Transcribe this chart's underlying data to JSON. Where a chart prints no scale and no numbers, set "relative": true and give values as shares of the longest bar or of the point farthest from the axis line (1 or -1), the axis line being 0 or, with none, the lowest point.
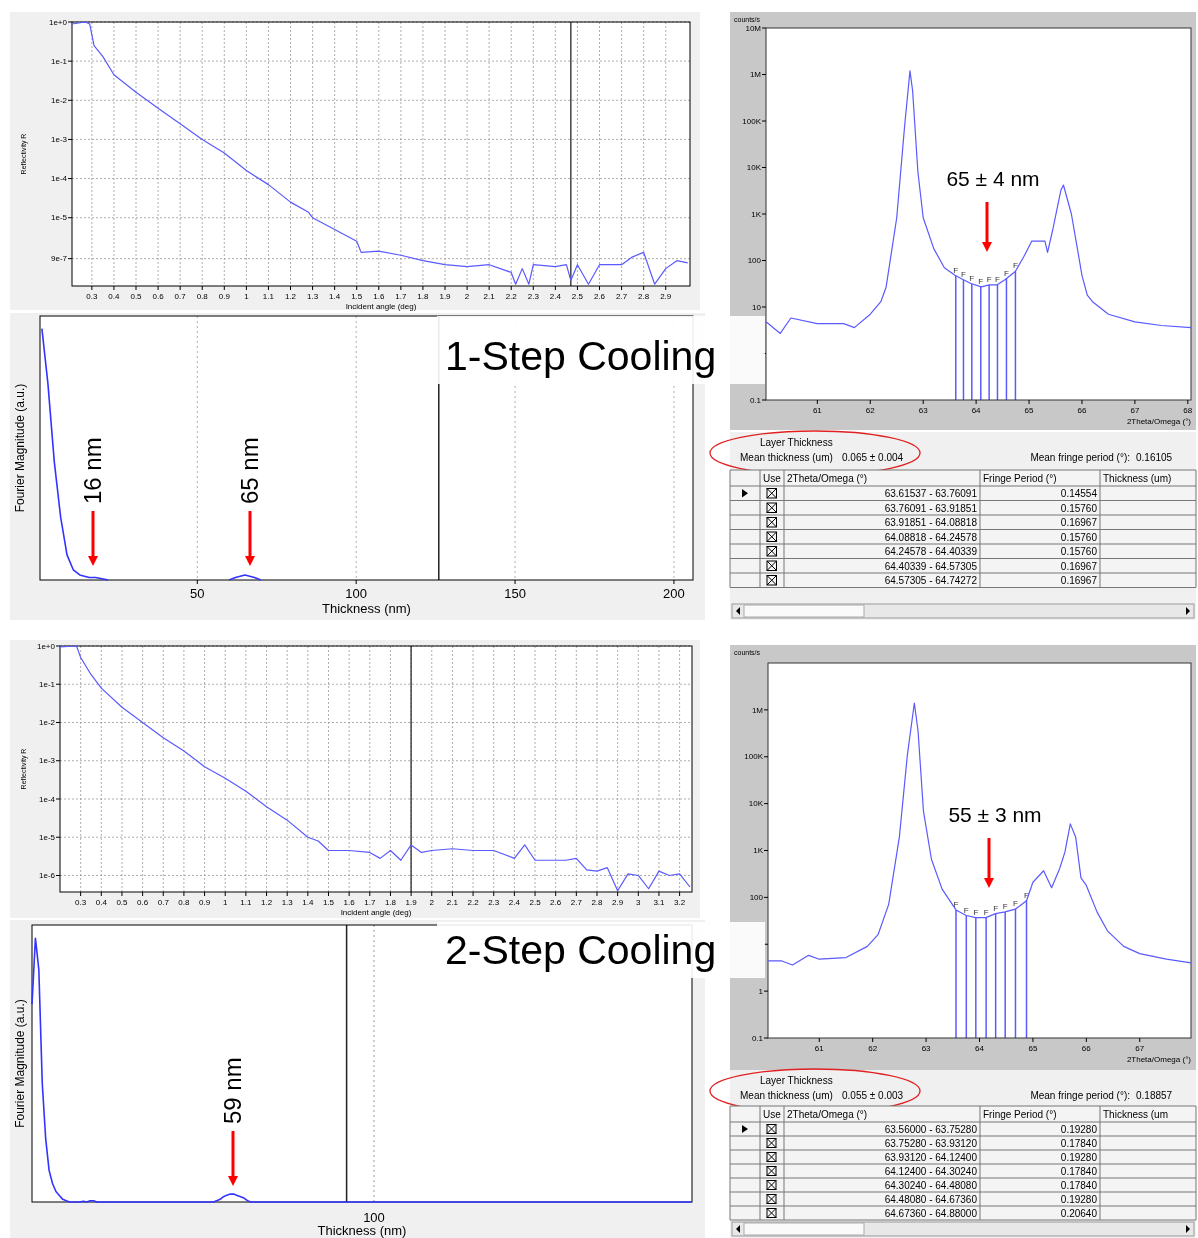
{
  "chart_data": [
    {
      "type": "line",
      "xlabel": "Incident angle (deg)",
      "ylabel": "Reflectivity R",
      "log": true,
      "grid": true,
      "xlim": [
        0.21,
        3.01
      ],
      "ylim": [
        1.8e-07,
        1
      ],
      "xticks": [
        0.3,
        0.4,
        0.5,
        0.6,
        0.7,
        0.8,
        0.9,
        1,
        1.1,
        1.2,
        1.3,
        1.4,
        1.5,
        1.6,
        1.7,
        1.8,
        1.9,
        2,
        2.1,
        2.2,
        2.3,
        2.4,
        2.5,
        2.6,
        2.7,
        2.8,
        2.9
      ],
      "yticks": [
        {
          "value": 1,
          "label": "1e+0"
        },
        {
          "value": 0.1,
          "label": "1e-1"
        },
        {
          "value": 0.01,
          "label": "1e-2"
        },
        {
          "value": 0.001,
          "label": "1e-3"
        },
        {
          "value": 0.0001,
          "label": "1e-4"
        },
        {
          "value": 1e-05,
          "label": "1e-5"
        },
        {
          "value": 9e-07,
          "label": "9e-7"
        }
      ],
      "x": [
        0.21,
        0.27,
        0.29,
        0.31,
        0.35,
        0.4,
        0.5,
        0.6,
        0.7,
        0.8,
        0.9,
        1.0,
        1.1,
        1.2,
        1.28,
        1.3,
        1.4,
        1.5,
        1.52,
        1.6,
        1.7,
        1.8,
        1.9,
        2.0,
        2.1,
        2.2,
        2.22,
        2.25,
        2.28,
        2.3,
        2.4,
        2.45,
        2.47,
        2.5,
        2.55,
        2.6,
        2.7,
        2.75,
        2.8,
        2.85,
        2.9,
        2.95,
        3.0
      ],
      "series": [
        {
          "color": "#5a5aff",
          "values": [
            0.89,
            1,
            0.89,
            0.25,
            0.13,
            0.045,
            0.016,
            0.0063,
            0.0025,
            0.001,
            0.00045,
            0.00016,
            7e-05,
            2.5e-05,
            1.4e-05,
            1e-05,
            5e-06,
            2.5e-06,
            1.3e-06,
            1.4e-06,
            1.1e-06,
            8e-07,
            6.3e-07,
            5.6e-07,
            6.3e-07,
            4e-07,
            2e-07,
            5e-07,
            2e-07,
            6.3e-07,
            5.6e-07,
            6.3e-07,
            2.5e-07,
            6.3e-07,
            2e-07,
            6.3e-07,
            6.3e-07,
            1e-06,
            1.3e-06,
            2e-07,
            5e-07,
            8e-07,
            7e-07
          ]
        }
      ],
      "ref_lines": [
        {
          "axis": "x",
          "value": 2.47,
          "color": "#444444"
        }
      ]
    },
    {
      "type": "line",
      "xlabel": "2Theta/Omega (°)",
      "ylabel": "counts/s",
      "log": true,
      "xlim": [
        60.03,
        68.06
      ],
      "ylim": [
        0.1,
        10000000.0
      ],
      "xticks": [
        61,
        62,
        63,
        64,
        65,
        66,
        67,
        68
      ],
      "yticks": [
        0.1,
        {
          "value": 1,
          "label": null
        },
        10,
        100,
        {
          "value": 1000,
          "label": "1K"
        },
        {
          "value": 10000,
          "label": "10K"
        },
        {
          "value": 100000,
          "label": "100K"
        },
        {
          "value": 1000000,
          "label": "1M"
        },
        {
          "value": 10000000,
          "label": "10M"
        }
      ],
      "x": [
        60.03,
        60.3,
        60.5,
        61,
        61.5,
        61.7,
        62,
        62.2,
        62.3,
        62.5,
        62.65,
        62.75,
        62.8,
        62.9,
        63.0,
        63.2,
        63.4,
        63.6,
        63.75,
        63.9,
        64.1,
        64.25,
        64.4,
        64.55,
        64.74,
        64.9,
        65.05,
        65.3,
        65.35,
        65.45,
        65.6,
        65.65,
        65.8,
        65.9,
        66.0,
        66.1,
        66.2,
        66.5,
        67,
        67.5,
        68.06
      ],
      "series": [
        {
          "color": "#5a5aff",
          "values": [
            4.8,
            2.7,
            5.8,
            4.4,
            4.4,
            3.6,
            7,
            13,
            27,
            830,
            80000.0,
            1200000.0,
            450000.0,
            8100,
            830,
            180,
            70,
            48,
            39,
            32,
            27,
            30,
            30,
            39,
            58,
            120,
            260,
            260,
            150,
            470,
            3200,
            4200,
            1000,
            220,
            48,
            18,
            13,
            7,
            4.8,
            4,
            3.6
          ]
        }
      ],
      "ref_lines": [
        {
          "axis": "x",
          "value": 63.61537,
          "label": "F",
          "color": "#5a5aff"
        },
        {
          "axis": "x",
          "value": 63.76091,
          "label": "F",
          "color": "#5a5aff"
        },
        {
          "axis": "x",
          "value": 63.91851,
          "label": "F",
          "color": "#5a5aff"
        },
        {
          "axis": "x",
          "value": 64.08818,
          "label": "F",
          "color": "#5a5aff"
        },
        {
          "axis": "x",
          "value": 64.24578,
          "label": "F",
          "color": "#5a5aff"
        },
        {
          "axis": "x",
          "value": 64.40339,
          "label": "F",
          "color": "#5a5aff"
        },
        {
          "axis": "x",
          "value": 64.57305,
          "label": "F",
          "color": "#5a5aff"
        },
        {
          "axis": "x",
          "value": 64.74272,
          "label": "F",
          "color": "#5a5aff"
        }
      ],
      "annotations": [
        "65 ± 4 nm"
      ]
    },
    {
      "type": "line",
      "title": "1-Step Cooling",
      "xlabel": "Thickness (nm)",
      "ylabel": "Fourier Magnitude (a.u.)",
      "relative": true,
      "grid": "x",
      "xlim": [
        0.5,
        206
      ],
      "xticks": [
        50,
        100,
        150,
        200
      ],
      "x": [
        1.1,
        3,
        5,
        7,
        9,
        11,
        13,
        16,
        18,
        20,
        22,
        40,
        60,
        62,
        65,
        68,
        70
      ],
      "series": [
        {
          "color": "#3333ff",
          "values": [
            1,
            0.78,
            0.47,
            0.25,
            0.1,
            0.04,
            0.02,
            0.01,
            0.01,
            0.005,
            0,
            null,
            0,
            0.01,
            0.02,
            0.01,
            0
          ]
        }
      ],
      "ref_lines": [
        {
          "axis": "x",
          "value": 126,
          "color": "#222222"
        }
      ],
      "annotations": [
        "16 nm",
        "65 nm"
      ]
    },
    {
      "type": "other",
      "title": "Layer Thickness",
      "annotations": [
        "Mean thickness (um)",
        "0.065 ± 0.004",
        "Mean fringe period (°):",
        "0.16105"
      ],
      "categories": [
        "Use",
        "2Theta/Omega (°)",
        "Fringe Period (°)",
        "Thickness (um)"
      ],
      "cell_labels": [
        [
          null,
          "63.61537 - 63.76091",
          "0.14554",
          null
        ],
        [
          null,
          "63.76091 - 63.91851",
          "0.15760",
          null
        ],
        [
          null,
          "63.91851 - 64.08818",
          "0.16967",
          null
        ],
        [
          null,
          "64.08818 - 64.24578",
          "0.15760",
          null
        ],
        [
          null,
          "64.24578 - 64.40339",
          "0.15760",
          null
        ],
        [
          null,
          "64.40339 - 64.57305",
          "0.16967",
          null
        ],
        [
          null,
          "64.57305 - 64.74272",
          "0.16967",
          null
        ]
      ]
    },
    {
      "type": "line",
      "xlabel": "Incident angle (deg)",
      "ylabel": "Reflectivity R",
      "log": true,
      "grid": true,
      "xlim": [
        0.2,
        3.26
      ],
      "ylim": [
        3.7e-07,
        1
      ],
      "xticks": [
        0.3,
        0.4,
        0.5,
        0.6,
        0.7,
        0.8,
        0.9,
        1,
        1.1,
        1.2,
        1.3,
        1.4,
        1.5,
        1.6,
        1.7,
        1.8,
        1.9,
        2,
        2.1,
        2.2,
        2.3,
        2.4,
        2.5,
        2.6,
        2.7,
        2.8,
        2.9,
        3,
        3.1,
        3.2
      ],
      "yticks": [
        {
          "value": 1,
          "label": "1e+0"
        },
        {
          "value": 0.1,
          "label": "1e-1"
        },
        {
          "value": 0.01,
          "label": "1e-2"
        },
        {
          "value": 0.001,
          "label": "1e-3"
        },
        {
          "value": 0.0001,
          "label": "1e-4"
        },
        {
          "value": 1e-05,
          "label": "1e-5"
        },
        {
          "value": 1e-06,
          "label": "1e-6"
        }
      ],
      "x": [
        0.2,
        0.28,
        0.3,
        0.35,
        0.4,
        0.5,
        0.6,
        0.7,
        0.8,
        0.9,
        1.0,
        1.1,
        1.2,
        1.3,
        1.4,
        1.45,
        1.5,
        1.6,
        1.7,
        1.75,
        1.8,
        1.85,
        1.9,
        1.95,
        2.0,
        2.1,
        2.2,
        2.3,
        2.4,
        2.45,
        2.5,
        2.6,
        2.65,
        2.7,
        2.75,
        2.8,
        2.85,
        2.9,
        2.95,
        3.0,
        3.05,
        3.1,
        3.15,
        3.2,
        3.25
      ],
      "series": [
        {
          "color": "#5a5aff",
          "values": [
            0.95,
            1,
            0.5,
            0.18,
            0.079,
            0.025,
            0.01,
            0.004,
            0.0018,
            0.0007,
            0.00035,
            0.00016,
            6.3e-05,
            2.8e-05,
            1e-05,
            8e-06,
            4.5e-06,
            4.5e-06,
            4e-06,
            2.8e-06,
            4.5e-06,
            2.5e-06,
            6.3e-06,
            4e-06,
            4.5e-06,
            5e-06,
            4.5e-06,
            4.5e-06,
            2.8e-06,
            6.3e-06,
            2.5e-06,
            2.5e-06,
            2.5e-06,
            2.8e-06,
            1.4e-06,
            1.3e-06,
            1.6e-06,
            4e-07,
            1.1e-06,
            1e-06,
            4.5e-07,
            1.3e-06,
            1e-06,
            1.1e-06,
            5e-07
          ]
        }
      ],
      "ref_lines": [
        {
          "axis": "x",
          "value": 1.9,
          "color": "#444444"
        }
      ]
    },
    {
      "type": "line",
      "xlabel": "2Theta/Omega (°)",
      "ylabel": "counts/s",
      "log": true,
      "xlim": [
        60.04,
        67.96
      ],
      "ylim": [
        0.1,
        10000000.0
      ],
      "xticks": [
        61,
        62,
        63,
        64,
        65,
        66,
        67
      ],
      "yticks": [
        0.1,
        1,
        {
          "value": 10,
          "label": null
        },
        100,
        {
          "value": 1000,
          "label": "1K"
        },
        {
          "value": 10000,
          "label": "10K"
        },
        {
          "value": 100000,
          "label": "100K"
        },
        {
          "value": 1000000,
          "label": "1M"
        }
      ],
      "x": [
        60.04,
        60.3,
        60.5,
        60.8,
        61,
        61.5,
        61.9,
        62.1,
        62.3,
        62.5,
        62.65,
        62.78,
        62.85,
        62.95,
        63.1,
        63.3,
        63.56,
        63.75,
        63.93,
        64.12,
        64.3,
        64.48,
        64.67,
        64.88,
        65.0,
        65.2,
        65.35,
        65.5,
        65.6,
        65.7,
        65.8,
        65.9,
        66.0,
        66.2,
        66.4,
        66.7,
        67.0,
        67.5,
        67.96
      ],
      "series": [
        {
          "color": "#5a5aff",
          "values": [
            4.4,
            4.4,
            3.6,
            5.8,
            4.8,
            5.2,
            9,
            16,
            71,
            1950,
            110000.0,
            1400000.0,
            350000.0,
            7000,
            650,
            150,
            54,
            41,
            37,
            37,
            45,
            49,
            56,
            85,
            210,
            370,
            160,
            410,
            930,
            3700,
            1950,
            260,
            180,
            49,
            19,
            9,
            6.3,
            4.8,
            4
          ]
        }
      ],
      "ref_lines": [
        {
          "axis": "x",
          "value": 63.56,
          "label": "F",
          "color": "#5a5aff"
        },
        {
          "axis": "x",
          "value": 63.7528,
          "label": "F",
          "color": "#5a5aff"
        },
        {
          "axis": "x",
          "value": 63.9312,
          "label": "F",
          "color": "#5a5aff"
        },
        {
          "axis": "x",
          "value": 64.124,
          "label": "F",
          "color": "#5a5aff"
        },
        {
          "axis": "x",
          "value": 64.3024,
          "label": "F",
          "color": "#5a5aff"
        },
        {
          "axis": "x",
          "value": 64.4808,
          "label": "F",
          "color": "#5a5aff"
        },
        {
          "axis": "x",
          "value": 64.6736,
          "label": "F",
          "color": "#5a5aff"
        },
        {
          "axis": "x",
          "value": 64.88,
          "label": "F",
          "color": "#5a5aff"
        }
      ],
      "annotations": [
        "55 ± 3 nm"
      ]
    },
    {
      "type": "line",
      "title": "2-Step Cooling",
      "xlabel": "Thickness (nm)",
      "ylabel": "Fourier Magnitude (a.u.)",
      "relative": true,
      "categories": [
        null,
        null,
        null,
        null,
        null,
        null,
        null,
        null,
        null,
        null,
        null,
        null,
        null,
        null,
        null,
        null,
        null,
        null,
        null,
        null,
        null,
        null,
        null,
        null,
        null,
        null,
        null,
        null,
        null,
        null,
        null,
        null,
        null,
        null,
        null,
        null,
        null,
        null,
        null,
        null,
        null,
        null,
        null,
        null,
        null,
        null,
        null,
        null,
        null,
        null,
        null,
        null,
        null,
        null,
        null,
        null,
        null,
        null,
        null,
        null,
        null,
        null,
        null,
        null,
        null,
        null,
        null,
        null,
        null,
        null,
        null,
        null,
        null,
        null,
        null,
        null,
        null,
        null,
        null,
        null,
        null,
        null,
        null,
        null,
        null,
        null,
        null,
        null,
        null,
        null,
        null,
        null,
        null,
        null,
        null,
        null,
        null,
        null,
        null,
        null,
        null,
        null,
        null,
        null,
        null,
        null,
        null,
        null,
        null,
        null,
        null,
        null,
        null,
        null,
        null,
        null,
        null,
        null,
        null,
        null,
        null,
        null,
        null,
        null,
        null,
        null,
        null,
        null,
        null,
        null,
        null,
        null,
        null,
        null,
        null,
        null,
        null,
        null,
        null,
        null,
        null,
        null,
        null,
        null,
        null,
        null,
        null,
        null,
        null,
        null,
        null,
        null,
        null,
        null,
        null,
        null,
        null,
        null,
        null,
        null,
        null,
        null,
        null,
        null,
        null,
        null,
        null,
        null,
        null,
        null,
        null,
        null,
        null,
        null,
        null,
        null,
        null,
        null,
        null,
        null,
        null,
        null,
        null,
        null,
        null,
        null,
        null,
        null,
        null,
        null,
        null,
        null,
        null,
        null
      ],
      "series": [
        {
          "color": "#3333ff",
          "values": [
            0.75,
            1,
            0.88,
            0.45,
            0.24,
            0.12,
            0.07,
            0.04,
            0.025,
            0.01,
            0.005,
            0,
            0,
            0,
            0,
            0.003,
            0,
            0.005,
            0.005,
            0,
            0,
            0,
            0,
            0,
            0,
            0,
            0,
            0,
            0,
            0,
            0,
            0,
            0,
            0,
            0,
            0,
            0,
            0,
            0,
            0,
            0,
            0,
            0,
            0,
            0,
            0,
            0,
            0,
            0,
            0,
            0,
            0,
            0,
            0,
            0.005,
            0.01,
            0.02,
            0.026,
            0.03,
            0.03,
            0.025,
            0.02,
            0.015,
            0.005,
            0,
            0,
            0,
            0,
            0,
            0,
            0,
            0,
            0,
            0,
            0,
            0,
            0,
            0,
            0,
            0,
            0,
            0,
            0,
            0,
            0,
            0,
            0,
            0,
            0,
            0,
            0,
            0,
            0,
            0,
            0,
            0,
            0,
            0,
            0,
            0,
            0,
            0,
            0,
            0,
            0,
            0,
            0,
            0,
            0,
            0,
            0,
            0,
            0,
            0,
            0,
            0,
            0,
            0,
            0,
            0,
            0,
            0,
            0,
            0,
            0,
            0,
            0,
            0,
            0,
            0,
            0,
            0,
            0,
            0,
            0,
            0,
            0,
            0,
            0,
            0,
            0,
            0,
            0,
            0,
            0,
            0,
            0,
            0,
            0,
            0,
            0,
            0,
            0,
            0,
            0,
            0,
            0,
            0,
            0,
            0,
            0,
            0,
            0,
            0,
            0,
            0,
            0,
            0,
            0,
            0,
            0,
            0,
            0,
            0,
            0,
            0,
            0,
            0,
            0,
            0,
            0,
            0,
            0,
            0,
            0,
            0,
            0,
            0,
            0,
            0,
            0,
            0,
            0,
            0
          ]
        }
      ],
      "annotations": [
        "59 nm",
        "100"
      ]
    },
    {
      "type": "other",
      "title": "Layer Thickness",
      "annotations": [
        "Mean thickness (um)",
        "0.055 ± 0.003",
        "Mean fringe period (°):",
        "0.18857"
      ],
      "categories": [
        "Use",
        "2Theta/Omega (°)",
        "Fringe Period (°)",
        "Thickness (um"
      ],
      "cell_labels": [
        [
          null,
          "63.56000 - 63.75280",
          "0.19280",
          null
        ],
        [
          null,
          "63.75280 - 63.93120",
          "0.17840",
          null
        ],
        [
          null,
          "63.93120 - 64.12400",
          "0.19280",
          null
        ],
        [
          null,
          "64.12400 - 64.30240",
          "0.17840",
          null
        ],
        [
          null,
          "64.30240 - 64.48080",
          "0.17840",
          null
        ],
        [
          null,
          "64.48080 - 64.67360",
          "0.19280",
          null
        ],
        [
          null,
          "64.67360 - 64.88000",
          "0.20640",
          null
        ]
      ]
    }
  ]
}
